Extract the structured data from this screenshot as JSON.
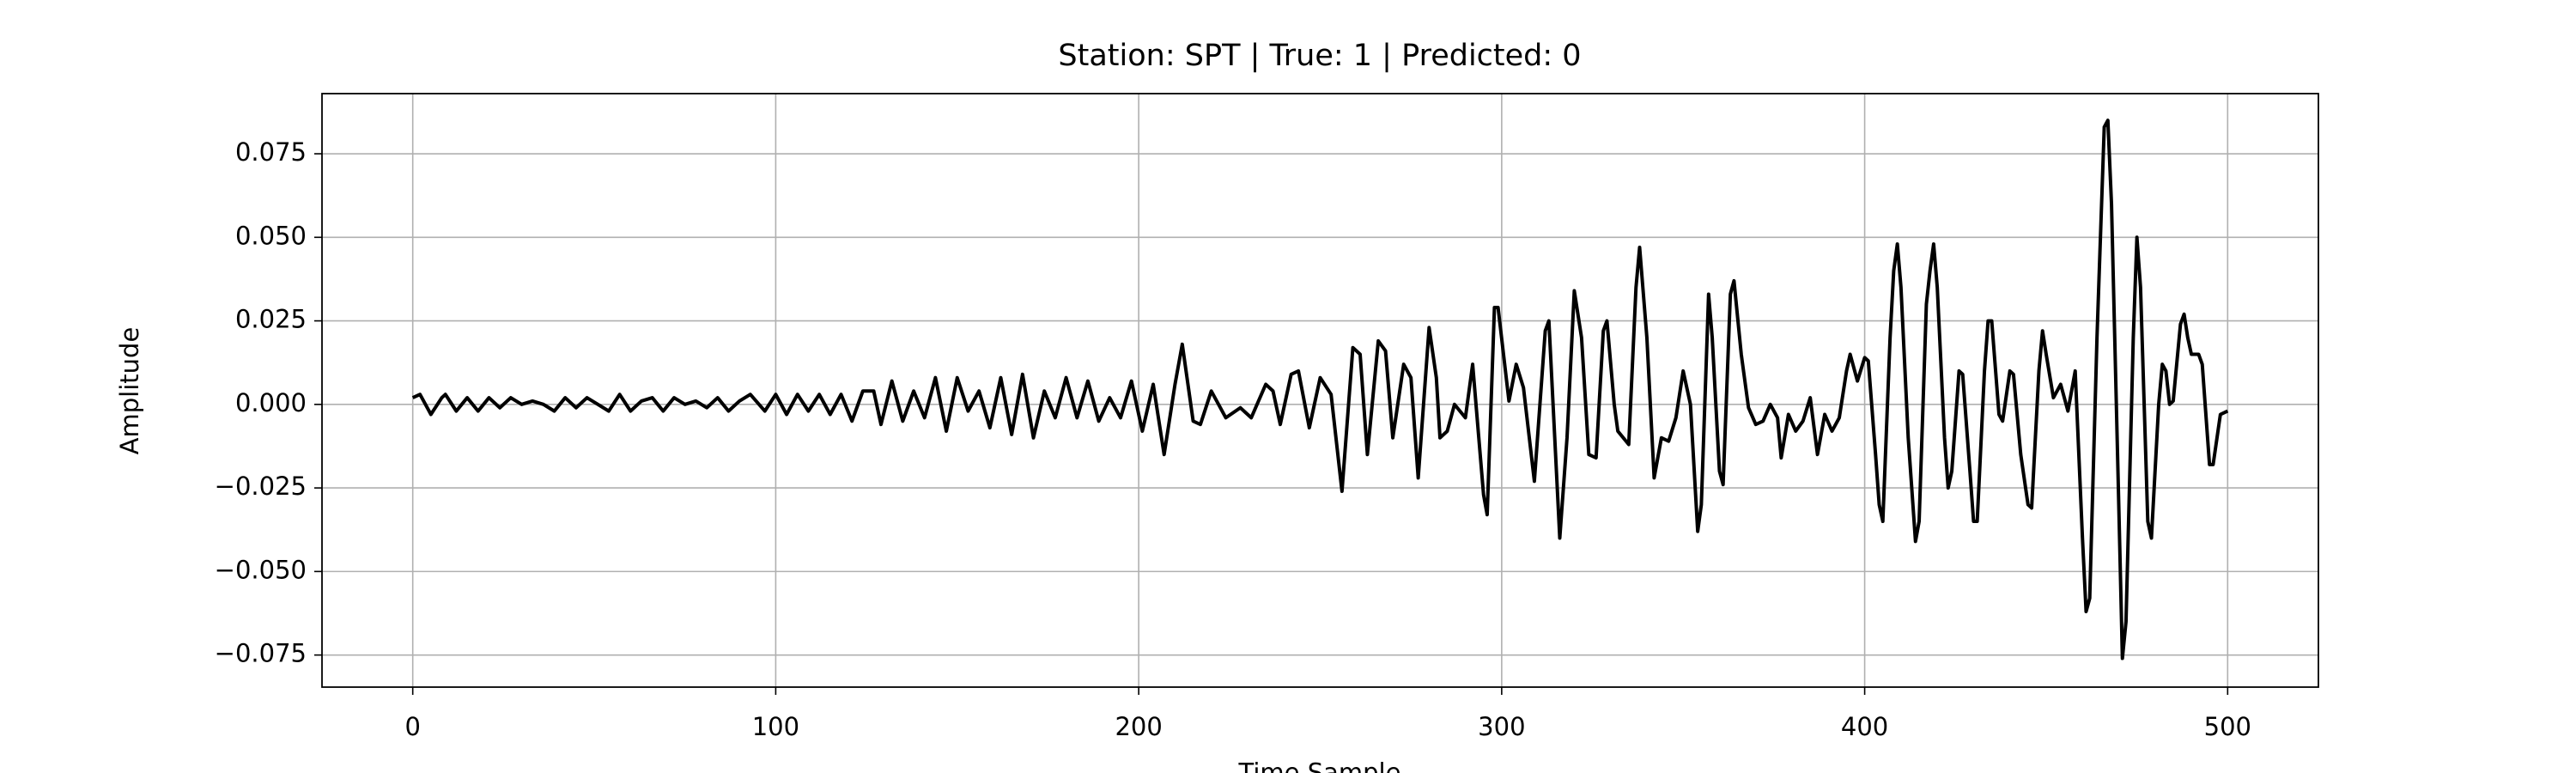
{
  "chart_data": {
    "type": "line",
    "title": "Station: SPT | True: 1 | Predicted: 0",
    "xlabel": "Time Sample",
    "ylabel": "Amplitude",
    "color": "#000000",
    "grid": true,
    "xlim": [
      -25,
      525
    ],
    "ylim": [
      -0.0846,
      0.093
    ],
    "xticks": [
      0,
      100,
      200,
      300,
      400,
      500
    ],
    "yticks": [
      {
        "value": -0.075,
        "label": "−0.075"
      },
      {
        "value": -0.05,
        "label": "−0.050"
      },
      {
        "value": -0.025,
        "label": "−0.025"
      },
      {
        "value": 0,
        "label": "0.000"
      },
      0.025,
      {
        "value": 0.05,
        "label": "0.050"
      },
      0.075
    ],
    "x": [
      0,
      2,
      4,
      5,
      8,
      9,
      12,
      15,
      18,
      21,
      24,
      27,
      30,
      33,
      36,
      39,
      42,
      45,
      48,
      51,
      54,
      57,
      60,
      63,
      66,
      69,
      72,
      75,
      78,
      81,
      84,
      87,
      90,
      93,
      97,
      100,
      103,
      106,
      109,
      112,
      115,
      118,
      121,
      124,
      127,
      129,
      132,
      135,
      138,
      141,
      144,
      147,
      150,
      153,
      156,
      159,
      162,
      165,
      168,
      171,
      174,
      177,
      180,
      183,
      186,
      189,
      192,
      195,
      198,
      201,
      204,
      207,
      210,
      212,
      215,
      217,
      220,
      224,
      228,
      231,
      235,
      237,
      239,
      242,
      244,
      247,
      250,
      253,
      256,
      259,
      261,
      263,
      266,
      268,
      270,
      273,
      275,
      277,
      280,
      282,
      283,
      285,
      287,
      290,
      292,
      295,
      296,
      298,
      299,
      302,
      304,
      306,
      309,
      312,
      313,
      316,
      318,
      320,
      322,
      324,
      326,
      328,
      329,
      331,
      332,
      335,
      337,
      338,
      340,
      342,
      344,
      346,
      348,
      350,
      352,
      354,
      355,
      357,
      358,
      360,
      361,
      363,
      364,
      366,
      368,
      370,
      372,
      374,
      376,
      377,
      379,
      381,
      383,
      385,
      387,
      389,
      391,
      393,
      395,
      396,
      398,
      400,
      401,
      403,
      404,
      405,
      407,
      408,
      409,
      410,
      412,
      414,
      415,
      417,
      418,
      419,
      420,
      422,
      423,
      424,
      426,
      427,
      429,
      430,
      431,
      433,
      434,
      435,
      437,
      438,
      440,
      441,
      443,
      445,
      446,
      448,
      449,
      450,
      452,
      454,
      456,
      458,
      460,
      461,
      462,
      464,
      466,
      467,
      468,
      470,
      471,
      472,
      474,
      475,
      476,
      478,
      479,
      481,
      482,
      483,
      484,
      485,
      487,
      488,
      489,
      490,
      492,
      493,
      495,
      496,
      498,
      500
    ],
    "values": [
      0.002,
      0.003,
      -0.001,
      -0.003,
      0.002,
      0.003,
      -0.002,
      0.002,
      -0.002,
      0.002,
      -0.001,
      0.002,
      0,
      0.001,
      0,
      -0.002,
      0.002,
      -0.001,
      0.002,
      0,
      -0.002,
      0.003,
      -0.002,
      0.001,
      0.002,
      -0.002,
      0.002,
      0,
      0.001,
      -0.001,
      0.002,
      -0.002,
      0.001,
      0.003,
      -0.002,
      0.003,
      -0.003,
      0.003,
      -0.002,
      0.003,
      -0.003,
      0.003,
      -0.005,
      0.004,
      0.004,
      -0.006,
      0.007,
      -0.005,
      0.004,
      -0.004,
      0.008,
      -0.008,
      0.008,
      -0.002,
      0.004,
      -0.007,
      0.008,
      -0.009,
      0.009,
      -0.01,
      0.004,
      -0.004,
      0.008,
      -0.004,
      0.007,
      -0.005,
      0.002,
      -0.004,
      0.007,
      -0.008,
      0.006,
      -0.015,
      0.006,
      0.018,
      -0.005,
      -0.006,
      0.004,
      -0.004,
      -0.001,
      -0.004,
      0.006,
      0.004,
      -0.006,
      0.009,
      0.01,
      -0.007,
      0.008,
      0.003,
      -0.026,
      0.017,
      0.015,
      -0.015,
      0.019,
      0.016,
      -0.01,
      0.012,
      0.008,
      -0.022,
      0.023,
      0.008,
      -0.01,
      -0.008,
      0,
      -0.004,
      0.012,
      -0.027,
      -0.033,
      0.029,
      0.029,
      0.001,
      0.012,
      0.005,
      -0.023,
      0.022,
      0.025,
      -0.04,
      -0.01,
      0.034,
      0.02,
      -0.015,
      -0.016,
      0.022,
      0.025,
      0,
      -0.008,
      -0.012,
      0.035,
      0.047,
      0.02,
      -0.022,
      -0.01,
      -0.011,
      -0.004,
      0.01,
      0,
      -0.038,
      -0.03,
      0.033,
      0.02,
      -0.02,
      -0.024,
      0.033,
      0.037,
      0.015,
      -0.001,
      -0.006,
      -0.005,
      0,
      -0.004,
      -0.016,
      -0.003,
      -0.008,
      -0.005,
      0.002,
      -0.015,
      -0.003,
      -0.008,
      -0.004,
      0.01,
      0.015,
      0.007,
      0.014,
      0.013,
      -0.015,
      -0.03,
      -0.035,
      0.02,
      0.04,
      0.048,
      0.035,
      -0.01,
      -0.041,
      -0.035,
      0.03,
      0.04,
      0.048,
      0.035,
      -0.01,
      -0.025,
      -0.02,
      0.01,
      0.009,
      -0.02,
      -0.035,
      -0.035,
      0.01,
      0.025,
      0.025,
      -0.003,
      -0.005,
      0.01,
      0.009,
      -0.015,
      -0.03,
      -0.031,
      0.01,
      0.022,
      0.015,
      0.002,
      0.006,
      -0.002,
      0.01,
      -0.04,
      -0.062,
      -0.058,
      0.02,
      0.083,
      0.085,
      0.06,
      -0.03,
      -0.076,
      -0.065,
      0.02,
      0.05,
      0.035,
      -0.035,
      -0.04,
      0,
      0.012,
      0.01,
      0,
      0.001,
      0.024,
      0.027,
      0.02,
      0.015,
      0.015,
      0.012,
      -0.018,
      -0.018,
      -0.003,
      -0.002
    ]
  }
}
